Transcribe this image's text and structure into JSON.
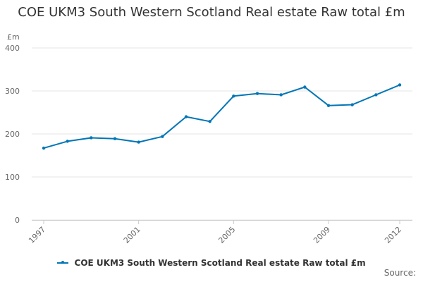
{
  "chart_data": {
    "type": "line",
    "title": "COE UKM3 South Western Scotland Real estate Raw total £m",
    "ylabel": "£m",
    "xlabel": "",
    "ylim": [
      0,
      400
    ],
    "yticks": [
      0,
      100,
      200,
      300,
      400
    ],
    "x": [
      1997,
      1998,
      1999,
      2000,
      2001,
      2002,
      2003,
      2004,
      2005,
      2006,
      2007,
      2008,
      2009,
      2010,
      2011,
      2012
    ],
    "xtick_labels": [
      "1997",
      "2001",
      "2005",
      "2009",
      "2012"
    ],
    "series": [
      {
        "name": "COE UKM3 South Western Scotland Real estate Raw total £m",
        "color": "#0076b6",
        "values": [
          167,
          183,
          191,
          189,
          181,
          194,
          240,
          229,
          288,
          294,
          291,
          309,
          266,
          268,
          291,
          314
        ]
      }
    ],
    "grid": true,
    "legend": "bottom",
    "source_label": "Source:"
  }
}
